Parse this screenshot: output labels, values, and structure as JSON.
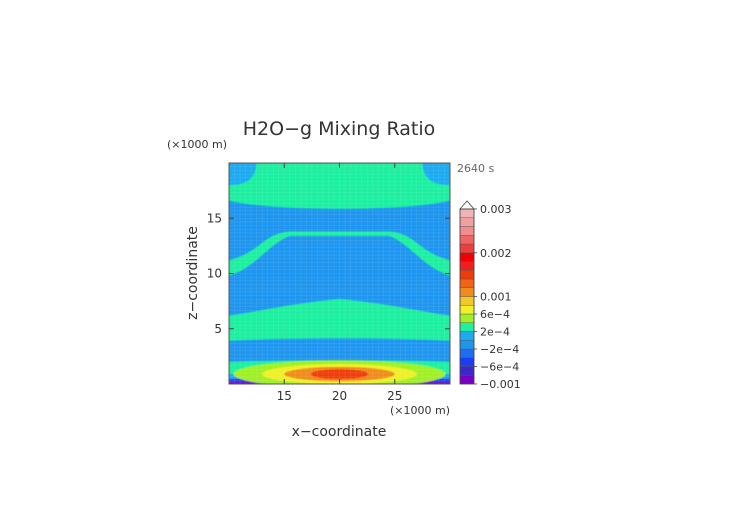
{
  "chart_data": {
    "type": "heatmap",
    "title": "H2O−g Mixing Ratio",
    "time_label": "2640 s",
    "xlabel": "x−coordinate",
    "ylabel": "z−coordinate",
    "x_unit": "(×1000 m)",
    "y_unit": "(×1000 m)",
    "xlim": [
      10,
      30
    ],
    "ylim": [
      0,
      20
    ],
    "x_ticks": [
      15,
      20,
      25
    ],
    "y_ticks": [
      5,
      10,
      15
    ],
    "colorbar": {
      "labels": [
        {
          "text": "0.003",
          "value": 0.003
        },
        {
          "text": "0.002",
          "value": 0.002
        },
        {
          "text": "0.001",
          "value": 0.001
        },
        {
          "text": "6e−4",
          "value": 0.0006
        },
        {
          "text": "2e−4",
          "value": 0.0002
        },
        {
          "text": "−2e−4",
          "value": -0.0002
        },
        {
          "text": "−6e−4",
          "value": -0.0006
        },
        {
          "text": "−0.001",
          "value": -0.001
        }
      ],
      "levels": [
        -0.001,
        -0.0008,
        -0.0006,
        -0.0004,
        -0.0002,
        0,
        0.0002,
        0.0004,
        0.0006,
        0.0008,
        0.001,
        0.0012,
        0.0014,
        0.0016,
        0.0018,
        0.002,
        0.0022,
        0.0024,
        0.0026,
        0.0028,
        0.003
      ],
      "colors": [
        "#7a00c8",
        "#3c28c8",
        "#1e3cf0",
        "#1e6ef0",
        "#1e96f0",
        "#1eaaf0",
        "#1ef0a0",
        "#a0f028",
        "#f0f028",
        "#f0c828",
        "#f08c1e",
        "#f06414",
        "#f03c0a",
        "#f01e1e",
        "#f00000",
        "#f03c3c",
        "#f06464",
        "#f08c8c",
        "#f0a0a0",
        "#f0b4b4"
      ],
      "extend_max": true
    }
  }
}
